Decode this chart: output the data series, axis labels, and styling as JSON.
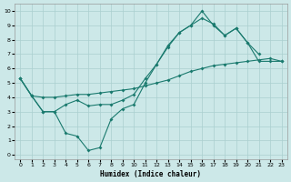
{
  "xlabel": "Humidex (Indice chaleur)",
  "bg_color": "#cce8e8",
  "line_color": "#1a7a6e",
  "grid_color": "#aacfcf",
  "xlim": [
    -0.5,
    23.5
  ],
  "ylim": [
    -0.3,
    10.5
  ],
  "xticks": [
    0,
    1,
    2,
    3,
    4,
    5,
    6,
    7,
    8,
    9,
    10,
    11,
    12,
    13,
    14,
    15,
    16,
    17,
    18,
    19,
    20,
    21,
    22,
    23
  ],
  "yticks": [
    0,
    1,
    2,
    3,
    4,
    5,
    6,
    7,
    8,
    9,
    10
  ],
  "s1_x": [
    0,
    1,
    2,
    3,
    4,
    5,
    6,
    7,
    8,
    9,
    10,
    11,
    12,
    13,
    14,
    15,
    16,
    17,
    18,
    19,
    20,
    21
  ],
  "s1_y": [
    5.3,
    4.1,
    3.0,
    3.0,
    1.5,
    1.3,
    0.3,
    0.5,
    2.5,
    3.2,
    3.5,
    5.0,
    6.3,
    7.5,
    8.5,
    9.0,
    9.5,
    9.1,
    8.3,
    8.8,
    7.8,
    7.0
  ],
  "s2_x": [
    0,
    1,
    2,
    3,
    4,
    5,
    6,
    7,
    8,
    9,
    10,
    11,
    12,
    13,
    14,
    15,
    16,
    17,
    18,
    19,
    20,
    21,
    22,
    23
  ],
  "s2_y": [
    5.3,
    4.1,
    4.0,
    4.0,
    4.1,
    4.2,
    4.2,
    4.3,
    4.4,
    4.5,
    4.6,
    4.8,
    5.0,
    5.2,
    5.5,
    5.8,
    6.0,
    6.2,
    6.3,
    6.4,
    6.5,
    6.6,
    6.7,
    6.5
  ],
  "s3_x": [
    0,
    1,
    2,
    3,
    4,
    5,
    6,
    7,
    8,
    9,
    10,
    11,
    12,
    13,
    14,
    15,
    16,
    17,
    18,
    19,
    20,
    21,
    22,
    23
  ],
  "s3_y": [
    5.3,
    4.1,
    3.0,
    3.0,
    3.5,
    3.8,
    3.4,
    3.5,
    3.5,
    3.8,
    4.2,
    5.3,
    6.3,
    7.6,
    8.5,
    9.0,
    10.0,
    9.0,
    8.3,
    8.8,
    7.8,
    6.5,
    6.5,
    6.5
  ]
}
